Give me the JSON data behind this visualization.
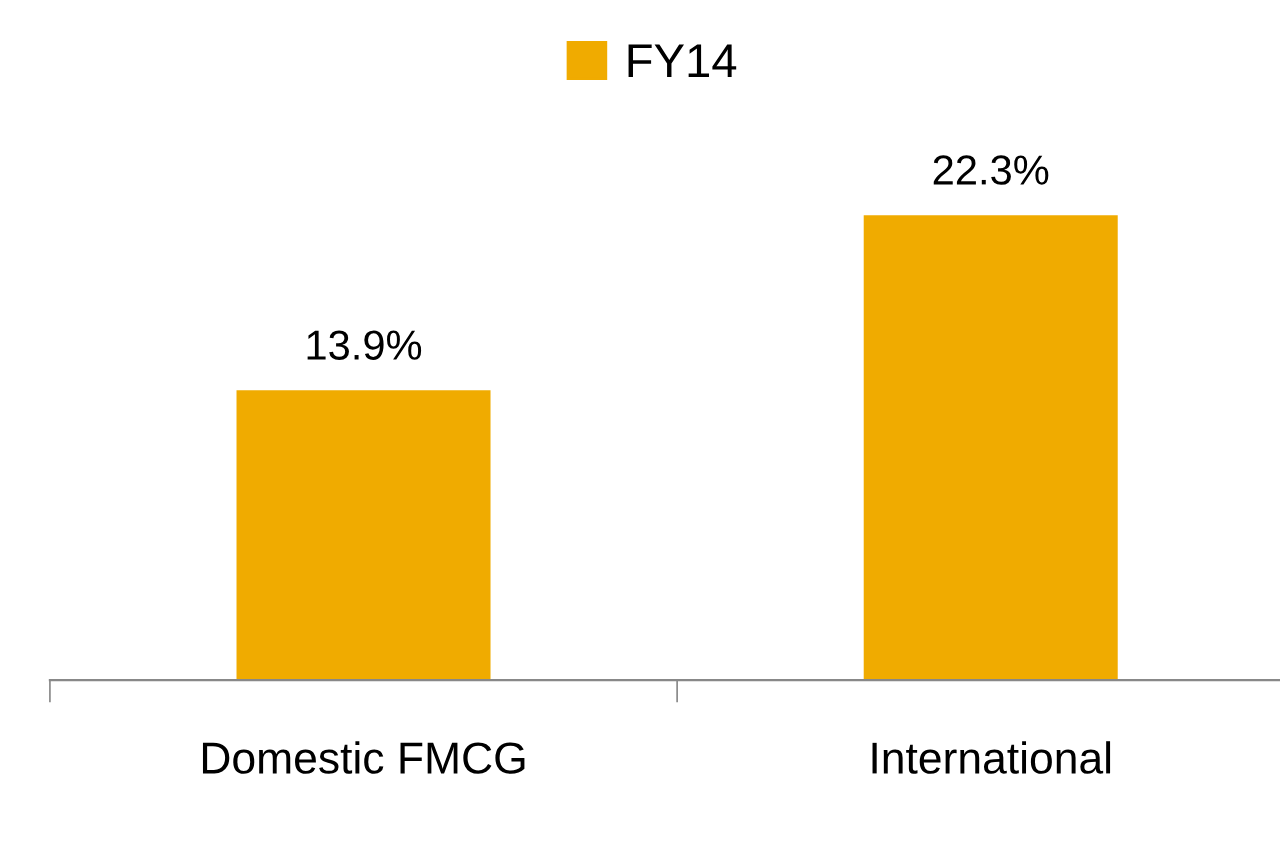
{
  "chart_data": {
    "type": "bar",
    "categories": [
      "Domestic FMCG",
      "International"
    ],
    "series": [
      {
        "name": "FY14",
        "color": "#f0ab00",
        "values": [
          13.9,
          22.3
        ],
        "value_labels": [
          "13.9%",
          "22.3%"
        ]
      }
    ],
    "legend": "top"
  }
}
